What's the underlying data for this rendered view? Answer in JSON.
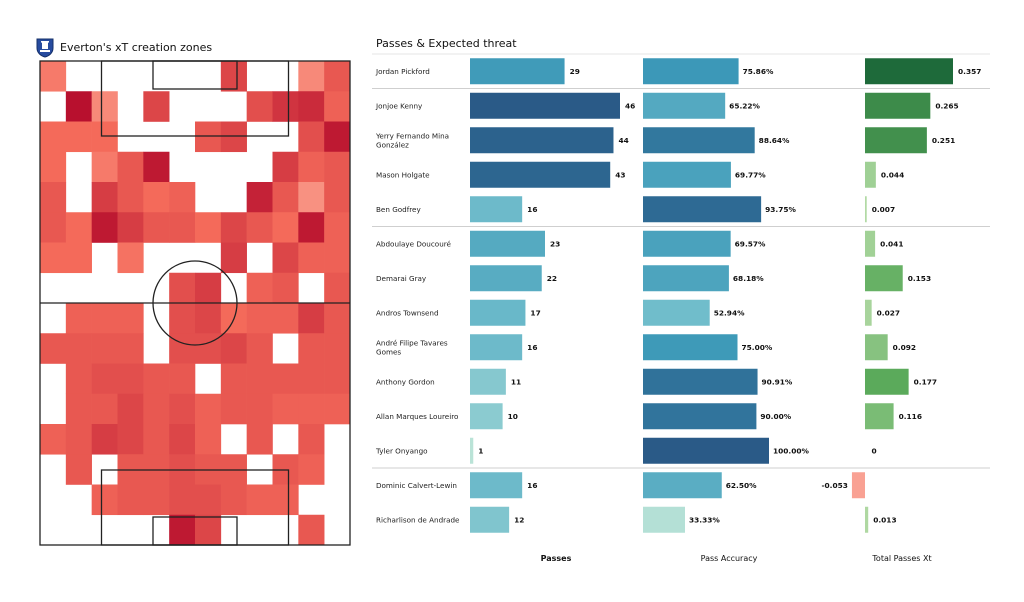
{
  "titles": {
    "left": "Everton's xT creation zones",
    "right": "Passes & Expected threat"
  },
  "colors": {
    "heat_low": "#fcb8a8",
    "heat_mid": "#f46a5a",
    "heat_high": "#b8102e",
    "passes_dark": "#2a5a87",
    "passes_light": "#bfe6d8",
    "xt_dark": "#1e6a3a",
    "xt_light": "#b6dca8",
    "xt_negative": "#f9a193"
  },
  "chart_data": [
    {
      "type": "heatmap",
      "title": "Everton's xT creation zones",
      "columns": 12,
      "rows": 16,
      "intensity": [
        [
          0.4,
          0,
          0,
          0,
          0,
          0,
          0,
          0.7,
          0,
          0,
          0.3,
          0.6
        ],
        [
          0,
          1,
          0.3,
          0,
          0.7,
          0,
          0,
          0,
          0.65,
          0.8,
          0.85,
          0.55
        ],
        [
          0.5,
          0.5,
          0.5,
          0,
          0,
          0,
          0.6,
          0.7,
          0,
          0,
          0.65,
          0.95
        ],
        [
          0.5,
          0,
          0.4,
          0.6,
          0.95,
          0,
          0,
          0,
          0,
          0.75,
          0.55,
          0.6
        ],
        [
          0.6,
          0,
          0.75,
          0.6,
          0.5,
          0.55,
          0,
          0,
          0.9,
          0.6,
          0.25,
          0.6
        ],
        [
          0.6,
          0.5,
          0.95,
          0.75,
          0.6,
          0.6,
          0.5,
          0.7,
          0.6,
          0.5,
          0.95,
          0.55
        ],
        [
          0.5,
          0.5,
          0,
          0.45,
          0,
          0,
          0,
          0.75,
          0,
          0.7,
          0.55,
          0.55
        ],
        [
          0,
          0,
          0,
          0,
          0,
          0.65,
          0.75,
          0,
          0.55,
          0.6,
          0,
          0.6
        ],
        [
          0,
          0.55,
          0.55,
          0.55,
          0,
          0.65,
          0.7,
          0.5,
          0.55,
          0.55,
          0.75,
          0.6
        ],
        [
          0.6,
          0.6,
          0.6,
          0.6,
          0,
          0.65,
          0.65,
          0.7,
          0.6,
          0,
          0.6,
          0.6
        ],
        [
          0,
          0.6,
          0.65,
          0.65,
          0.6,
          0.6,
          0,
          0.6,
          0.6,
          0.6,
          0.6,
          0.6
        ],
        [
          0,
          0.6,
          0.6,
          0.7,
          0.6,
          0.65,
          0.55,
          0.6,
          0.6,
          0.55,
          0.55,
          0.55
        ],
        [
          0.55,
          0.6,
          0.75,
          0.7,
          0.6,
          0.7,
          0.55,
          0,
          0.6,
          0,
          0.6,
          0
        ],
        [
          0,
          0.6,
          0,
          0.6,
          0.6,
          0.65,
          0.6,
          0.6,
          0,
          0.6,
          0.55,
          0
        ],
        [
          0,
          0,
          0.55,
          0.6,
          0.6,
          0.65,
          0.65,
          0.6,
          0.55,
          0.55,
          0,
          0
        ],
        [
          0,
          0,
          0,
          0,
          0,
          0.95,
          0.7,
          0,
          0,
          0,
          0.6,
          0
        ]
      ]
    },
    {
      "type": "bar",
      "title": "Passes & Expected threat",
      "categories": [
        "Jordan Pickford",
        "Jonjoe Kenny",
        "Yerry Fernando Mina González",
        "Mason Holgate",
        "Ben Godfrey",
        "Abdoulaye Doucouré",
        "Demarai Gray",
        "Andros Townsend",
        "André Filipe Tavares Gomes",
        "Anthony Gordon",
        "Allan Marques Loureiro",
        "Tyler Onyango",
        "Dominic Calvert-Lewin",
        "Richarlison de Andrade"
      ],
      "category_lines": [
        [
          "Jordan Pickford"
        ],
        [
          "Jonjoe Kenny"
        ],
        [
          "Yerry Fernando Mina",
          "González"
        ],
        [
          "Mason Holgate"
        ],
        [
          "Ben Godfrey"
        ],
        [
          "Abdoulaye Doucouré"
        ],
        [
          "Demarai Gray"
        ],
        [
          "Andros Townsend"
        ],
        [
          "André Filipe Tavares",
          "Gomes"
        ],
        [
          "Anthony Gordon"
        ],
        [
          "Allan Marques Loureiro"
        ],
        [
          "Tyler Onyango"
        ],
        [
          "Dominic Calvert-Lewin"
        ],
        [
          "Richarlison de Andrade"
        ]
      ],
      "series": [
        {
          "name": "Passes",
          "values": [
            29,
            46,
            44,
            43,
            16,
            23,
            22,
            17,
            16,
            11,
            10,
            1,
            16,
            12
          ],
          "labels": [
            "29",
            "46",
            "44",
            "43",
            "16",
            "23",
            "22",
            "17",
            "16",
            "11",
            "10",
            "1",
            "16",
            "12"
          ]
        },
        {
          "name": "Pass Accuracy",
          "values": [
            75.86,
            65.22,
            88.64,
            69.77,
            93.75,
            69.57,
            68.18,
            52.94,
            75.0,
            90.91,
            90.0,
            100.0,
            62.5,
            33.33
          ],
          "labels": [
            "75.86%",
            "65.22%",
            "88.64%",
            "69.77%",
            "93.75%",
            "69.57%",
            "68.18%",
            "52.94%",
            "75.00%",
            "90.91%",
            "90.00%",
            "100.00%",
            "62.50%",
            "33.33%"
          ]
        },
        {
          "name": "Total Passes Xt",
          "values": [
            0.357,
            0.265,
            0.251,
            0.044,
            0.007,
            0.041,
            0.153,
            0.027,
            0.092,
            0.177,
            0.116,
            0,
            -0.053,
            0.013
          ],
          "labels": [
            "0.357",
            "0.265",
            "0.251",
            "0.044",
            "0.007",
            "0.041",
            "0.153",
            "0.027",
            "0.092",
            "0.177",
            "0.116",
            "0",
            "-0.053",
            "0.013"
          ]
        }
      ],
      "group_separators_after": [
        0,
        4,
        11
      ]
    }
  ]
}
